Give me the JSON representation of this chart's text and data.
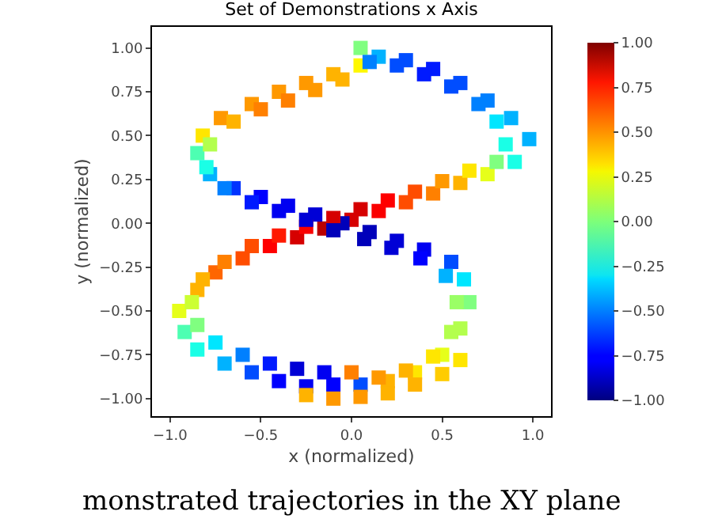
{
  "chart_data": {
    "type": "scatter",
    "title": "Set of Demonstrations x Axis",
    "xlabel": "x (normalized)",
    "ylabel": "y (normalized)",
    "annotations": [
      "monstrated trajectories in the XY plane"
    ],
    "marker": "square",
    "grid": false,
    "xlim": [
      -1.1,
      1.1
    ],
    "ylim": [
      -1.1,
      1.12
    ],
    "clim": [
      -1,
      1
    ],
    "xticks": [
      {
        "value": -1,
        "label": "−1.0"
      },
      {
        "value": -0.5,
        "label": "−0.5"
      },
      {
        "value": 0,
        "label": "0.0"
      },
      {
        "value": 0.5,
        "label": "0.5"
      },
      {
        "value": 1,
        "label": "1.0"
      }
    ],
    "yticks": [
      {
        "value": -1,
        "label": "−1.00"
      },
      {
        "value": -0.75,
        "label": "−0.75"
      },
      {
        "value": -0.5,
        "label": "−0.50"
      },
      {
        "value": -0.25,
        "label": "−0.25"
      },
      {
        "value": 0,
        "label": "0.00"
      },
      {
        "value": 0.25,
        "label": "0.25"
      },
      {
        "value": 0.5,
        "label": "0.50"
      },
      {
        "value": 0.75,
        "label": "0.75"
      },
      {
        "value": 1,
        "label": "1.00"
      }
    ],
    "cticks": [
      {
        "value": -1,
        "label": "−1.00"
      },
      {
        "value": -0.75,
        "label": "−0.75"
      },
      {
        "value": -0.5,
        "label": "−0.50"
      },
      {
        "value": -0.25,
        "label": "−0.25"
      },
      {
        "value": 0,
        "label": "0.00"
      },
      {
        "value": 0.25,
        "label": "0.25"
      },
      {
        "value": 0.5,
        "label": "0.50"
      },
      {
        "value": 0.75,
        "label": "0.75"
      },
      {
        "value": 1,
        "label": "1.00"
      }
    ],
    "series": [
      {
        "x": [
          0.05,
          0.15,
          0.3,
          0.45,
          0.6,
          0.75,
          0.88,
          0.98,
          0.9,
          0.75,
          0.6,
          0.45,
          0.3,
          0.15,
          0.0,
          -0.15,
          -0.3,
          -0.45,
          -0.6,
          -0.75,
          -0.85,
          -0.95,
          -0.92,
          -0.85,
          -0.7,
          -0.55,
          -0.4,
          -0.25,
          -0.1,
          0.05,
          0.2,
          0.35,
          0.5,
          0.6,
          0.65,
          0.62,
          0.55,
          0.4,
          0.25,
          0.1,
          -0.05,
          -0.2,
          -0.35,
          -0.5,
          -0.65,
          -0.78,
          -0.85,
          -0.82,
          -0.72,
          -0.55,
          -0.4,
          -0.25,
          -0.1,
          0.05
        ],
        "values": [
          1.0,
          0.95,
          0.93,
          0.88,
          0.8,
          0.7,
          0.6,
          0.48,
          0.35,
          0.28,
          0.23,
          0.17,
          0.12,
          0.07,
          0.02,
          -0.03,
          -0.08,
          -0.13,
          -0.2,
          -0.28,
          -0.38,
          -0.5,
          -0.62,
          -0.72,
          -0.8,
          -0.85,
          -0.9,
          -0.93,
          -0.92,
          -0.92,
          -0.9,
          -0.85,
          -0.75,
          -0.6,
          -0.45,
          -0.32,
          -0.22,
          -0.15,
          -0.1,
          -0.05,
          0.0,
          0.05,
          0.1,
          0.15,
          0.2,
          0.28,
          0.4,
          0.5,
          0.6,
          0.68,
          0.75,
          0.8,
          0.85,
          0.9
        ],
        "colors": [
          "#80ff80",
          "#00b2ff",
          "#004dff",
          "#001aff",
          "#004dff",
          "#0080ff",
          "#00b2ff",
          "#00b2ff",
          "#1affe6",
          "#e6ff1a",
          "#ffb300",
          "#ff8000",
          "#ff4d00",
          "#fa0000",
          "#d60000",
          "#ba0000",
          "#d60000",
          "#ff0000",
          "#ff4d00",
          "#ff6600",
          "#ffb300",
          "#e6ff1a",
          "#4dffb2",
          "#1affe6",
          "#00b2ff",
          "#004dff",
          "#0000ff",
          "#0000f1",
          "#0000ff",
          "#004dff",
          "#ffb300",
          "#ffe600",
          "#e6ff1a",
          "#b3ff4d",
          "#80ff80",
          "#00e6ff",
          "#004dff",
          "#0000f1",
          "#0000d6",
          "#0000ba",
          "#0000ba",
          "#0000d6",
          "#0000f1",
          "#0000ff",
          "#0033ff",
          "#00b2ff",
          "#4dffb2",
          "#ffe600",
          "#ff9900",
          "#ff9900",
          "#ff9900",
          "#ff9900",
          "#ffb300",
          "#fff800"
        ]
      },
      {
        "x": [
          0.1,
          0.25,
          0.4,
          0.55,
          0.7,
          0.8,
          0.85,
          0.8,
          0.65,
          0.5,
          0.35,
          0.2,
          0.05,
          -0.1,
          -0.25,
          -0.4,
          -0.55,
          -0.7,
          -0.82,
          -0.88,
          -0.85,
          -0.75,
          -0.6,
          -0.45,
          -0.3,
          -0.15,
          0.0,
          0.15,
          0.3,
          0.45,
          0.55,
          0.58,
          0.52,
          0.38,
          0.22,
          0.07,
          -0.1,
          -0.25,
          -0.4,
          -0.55,
          -0.7,
          -0.8,
          -0.78,
          -0.65,
          -0.5,
          -0.35,
          -0.2,
          -0.05
        ],
        "values": [
          0.92,
          0.9,
          0.85,
          0.78,
          0.68,
          0.58,
          0.45,
          0.35,
          0.3,
          0.24,
          0.18,
          0.13,
          0.08,
          0.03,
          -0.02,
          -0.07,
          -0.13,
          -0.22,
          -0.32,
          -0.45,
          -0.58,
          -0.68,
          -0.75,
          -0.8,
          -0.83,
          -0.85,
          -0.85,
          -0.88,
          -0.84,
          -0.76,
          -0.62,
          -0.45,
          -0.3,
          -0.2,
          -0.14,
          -0.09,
          -0.04,
          0.02,
          0.07,
          0.12,
          0.2,
          0.32,
          0.45,
          0.58,
          0.65,
          0.7,
          0.76,
          0.82
        ],
        "colors": [
          "#0080ff",
          "#004dff",
          "#001aff",
          "#004dff",
          "#0080ff",
          "#00e6ff",
          "#1affe6",
          "#80ff80",
          "#ffe600",
          "#ff9900",
          "#ff4d00",
          "#ff0000",
          "#d60000",
          "#d60000",
          "#fa0000",
          "#ff1a00",
          "#ff4d00",
          "#ff8000",
          "#ffb300",
          "#ccff33",
          "#80ff80",
          "#00e6ff",
          "#0080ff",
          "#001aff",
          "#0000d6",
          "#0000f1",
          "#ff8000",
          "#ff9900",
          "#ffb300",
          "#ffe600",
          "#b3ff4d",
          "#9aff66",
          "#00b2ff",
          "#0000ff",
          "#0000d6",
          "#0000ba",
          "#0000ba",
          "#0000d6",
          "#0000f1",
          "#001aff",
          "#0080ff",
          "#1affe6",
          "#b3ff4d",
          "#ffb300",
          "#ff8000",
          "#ff8000",
          "#ff9900",
          "#ffb300"
        ]
      },
      {
        "x": [
          -0.25,
          -0.1,
          0.05,
          0.2,
          0.35,
          0.5,
          0.6
        ],
        "values": [
          -0.98,
          -1.0,
          -0.99,
          -0.97,
          -0.92,
          -0.86,
          -0.78
        ],
        "colors": [
          "#ffb300",
          "#ff9900",
          "#ff9900",
          "#ffb300",
          "#ffb300",
          "#ffcc00",
          "#ffe600"
        ]
      }
    ]
  }
}
